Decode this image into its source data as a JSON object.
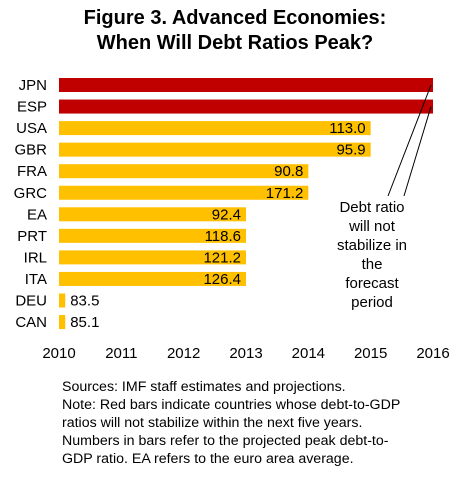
{
  "title_lines": [
    "Figure 3. Advanced  Economies:",
    "When Will Debt Ratios Peak?"
  ],
  "chart_data": {
    "type": "bar",
    "orientation": "horizontal",
    "title": "Figure 3. Advanced Economies: When Will Debt Ratios Peak?",
    "xlabel": "",
    "ylabel": "",
    "xlim": [
      2010,
      2016
    ],
    "x_ticks": [
      "2010",
      "2011",
      "2012",
      "2013",
      "2014",
      "2015",
      "2016"
    ],
    "categories": [
      "JPN",
      "ESP",
      "USA",
      "GBR",
      "FRA",
      "GRC",
      "EA",
      "PRT",
      "IRL",
      "ITA",
      "DEU",
      "CAN"
    ],
    "values": [
      2016,
      2016,
      2015,
      2015,
      2014,
      2014,
      2013,
      2013,
      2013,
      2013,
      2010.1,
      2010.1
    ],
    "peak_labels": [
      "",
      "",
      "113.0",
      "95.9",
      "90.8",
      "171.2",
      "92.4",
      "118.6",
      "121.2",
      "126.4",
      "83.5",
      "85.1"
    ],
    "stabilize": [
      false,
      false,
      true,
      true,
      true,
      true,
      true,
      true,
      true,
      true,
      true,
      true
    ],
    "colors": {
      "not_stabilize": "#c00000",
      "stabilize": "#ffc000"
    },
    "annotation": [
      "Debt ratio",
      "will not",
      "stabilize in",
      "the",
      "forecast",
      "period"
    ],
    "grid": false
  },
  "footnote_lines": [
    "Sources: IMF staff estimates and projections.",
    "Note: Red bars indicate countries whose debt-to-GDP",
    "ratios will not stabilize within the next five years.",
    "Numbers in bars refer to the projected peak debt-to-",
    "GDP ratio. EA refers to the euro area average."
  ]
}
